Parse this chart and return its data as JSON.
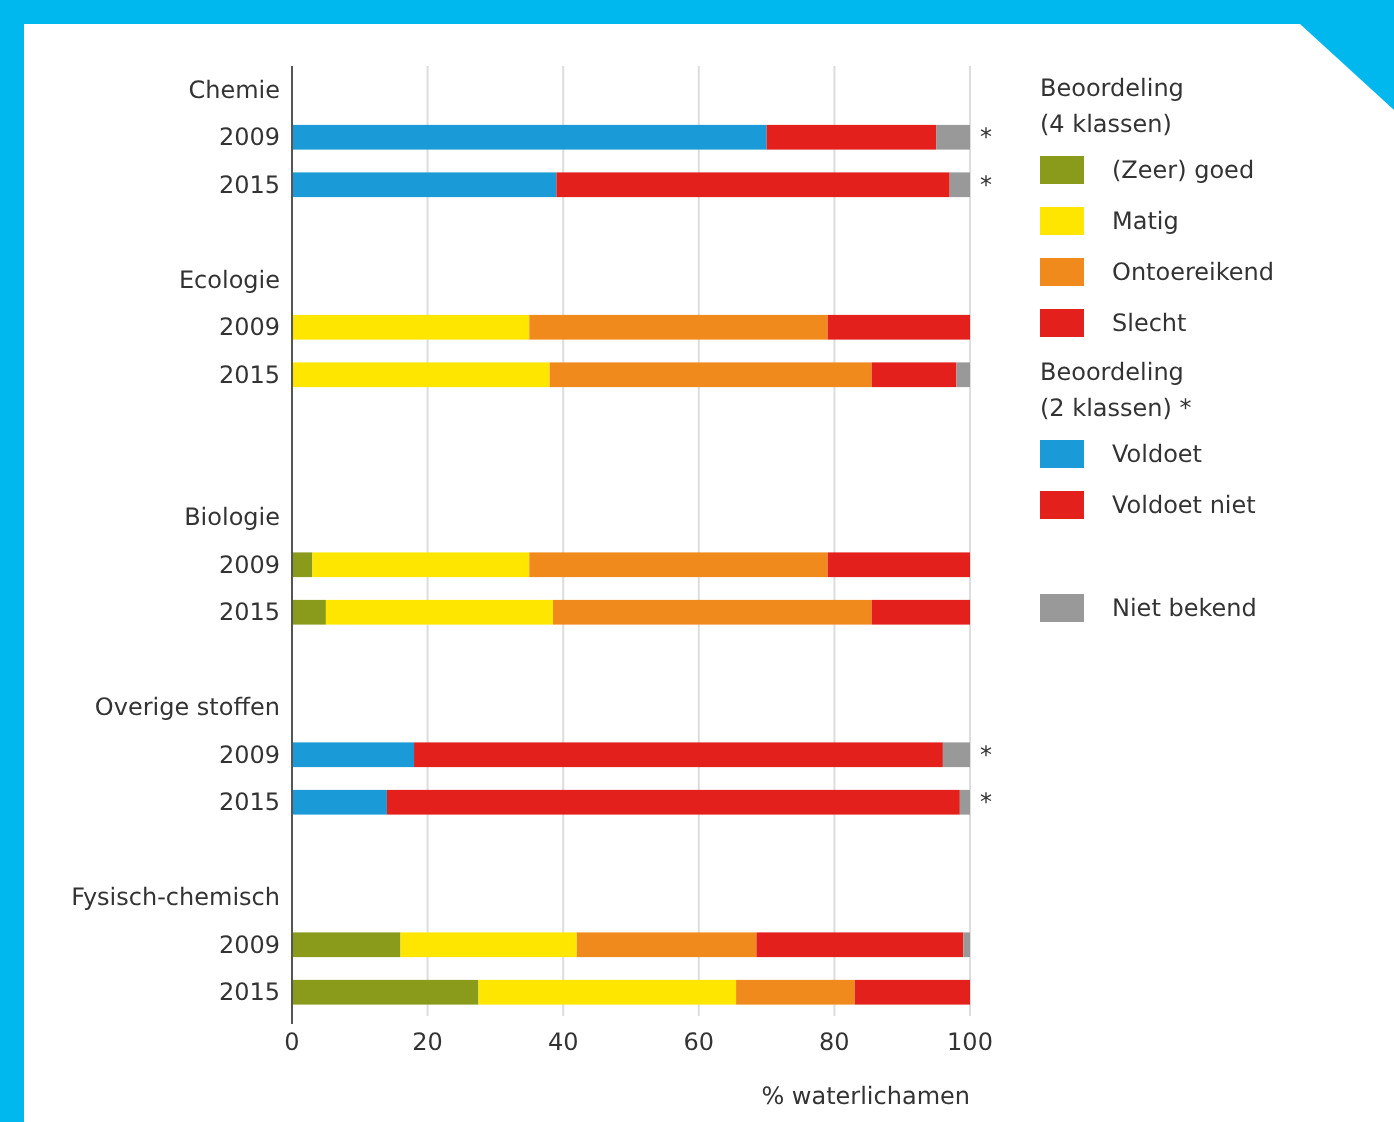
{
  "chart_data": {
    "type": "bar",
    "orientation": "horizontal",
    "stacked": true,
    "categories": [
      "Chemie",
      "2009",
      "2015",
      null,
      "Ecologie",
      "2009",
      "2015",
      null,
      null,
      "Biologie",
      "2009",
      "2015",
      null,
      "Overige stoffen",
      "2009",
      "2015",
      null,
      "Fysisch-chemisch",
      "2009",
      "2015"
    ],
    "series": [
      {
        "name": "(Zeer) goed",
        "color": "#8a9a1a",
        "values": [
          null,
          null,
          null,
          null,
          null,
          null,
          null,
          null,
          null,
          null,
          3,
          5,
          null,
          null,
          null,
          null,
          null,
          null,
          16,
          27.5
        ]
      },
      {
        "name": "Matig",
        "color": "#ffe600",
        "values": [
          null,
          null,
          null,
          null,
          null,
          35,
          38,
          null,
          null,
          null,
          32,
          33.5,
          null,
          null,
          null,
          null,
          null,
          null,
          26,
          38
        ]
      },
      {
        "name": "Ontoereikend",
        "color": "#f08a1c",
        "values": [
          null,
          null,
          null,
          null,
          null,
          44,
          47.5,
          null,
          null,
          null,
          44,
          47,
          null,
          null,
          null,
          null,
          null,
          null,
          26.5,
          17.5
        ]
      },
      {
        "name": "Slecht",
        "color": "#e3201b",
        "values": [
          null,
          null,
          null,
          null,
          null,
          21,
          12.5,
          null,
          null,
          null,
          21,
          14.5,
          null,
          null,
          null,
          null,
          null,
          null,
          30.5,
          17
        ]
      },
      {
        "name": "Voldoet",
        "color": "#1a9ad6",
        "values": [
          null,
          70,
          39,
          null,
          null,
          null,
          null,
          null,
          null,
          null,
          null,
          null,
          null,
          null,
          18,
          14,
          null,
          null,
          null,
          null
        ]
      },
      {
        "name": "Voldoet niet",
        "color": "#e3201b",
        "values": [
          null,
          25,
          58,
          null,
          null,
          null,
          null,
          null,
          null,
          null,
          null,
          null,
          null,
          null,
          78,
          84.5,
          null,
          null,
          null,
          null
        ]
      },
      {
        "name": "Niet bekend",
        "color": "#999999",
        "values": [
          null,
          5,
          3,
          null,
          null,
          null,
          2,
          null,
          null,
          null,
          null,
          null,
          null,
          null,
          4,
          1.5,
          null,
          null,
          1,
          null
        ]
      }
    ],
    "xlim": [
      0,
      100
    ],
    "xticks": [
      0,
      20,
      40,
      60,
      80,
      100
    ],
    "grid": "x",
    "xlabel": "% waterlichamen",
    "legend": "right",
    "legend_title": "Beoordeling (4 klassen)",
    "annotations": [
      "Beoordeling (2 klassen) *",
      {
        "text": "*"
      },
      {
        "text": "*"
      },
      {
        "text": "*"
      },
      {
        "text": "*"
      }
    ]
  }
}
